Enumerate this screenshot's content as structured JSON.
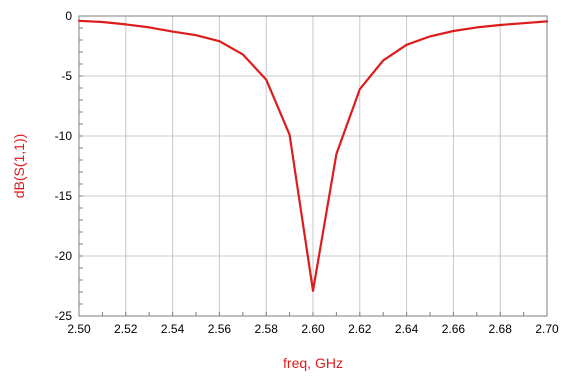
{
  "chart_data": {
    "type": "line",
    "title": "",
    "xlabel": "freq, GHz",
    "ylabel": "dB(S(1,1))",
    "xlim": [
      2.5,
      2.7
    ],
    "ylim": [
      -25,
      0
    ],
    "x_ticks": [
      "2.50",
      "2.52",
      "2.54",
      "2.56",
      "2.58",
      "2.60",
      "2.62",
      "2.64",
      "2.66",
      "2.68",
      "2.70"
    ],
    "y_ticks": [
      "0",
      "-5",
      "-10",
      "-15",
      "-20",
      "-25"
    ],
    "grid": true,
    "colors": {
      "line": "#dd1c1c",
      "axis_label": "#dd1c1c",
      "grid": "#c8c8c8",
      "frame": "#7f7f7f"
    },
    "series": [
      {
        "x": [
          2.5,
          2.51,
          2.52,
          2.53,
          2.54,
          2.55,
          2.56,
          2.57,
          2.58,
          2.59,
          2.6,
          2.61,
          2.62,
          2.63,
          2.64,
          2.65,
          2.66,
          2.67,
          2.68,
          2.69,
          2.7
        ],
        "y": [
          -0.4,
          -0.5,
          -0.7,
          -0.95,
          -1.3,
          -1.6,
          -2.1,
          -3.2,
          -5.3,
          -9.9,
          -22.9,
          -11.5,
          -6.1,
          -3.7,
          -2.4,
          -1.7,
          -1.25,
          -0.95,
          -0.75,
          -0.6,
          -0.45
        ]
      }
    ]
  }
}
